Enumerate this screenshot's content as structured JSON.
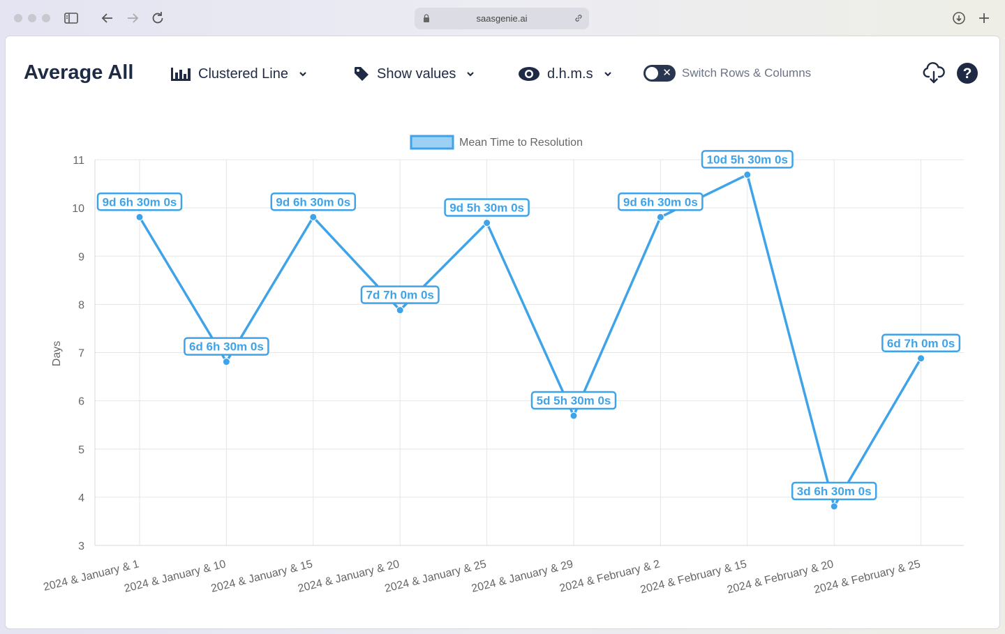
{
  "browser": {
    "url": "saasgenie.ai"
  },
  "toolbar": {
    "title": "Average All",
    "chart_type_label": "Clustered Line",
    "show_values_label": "Show values",
    "format_label": "d.h.m.s",
    "switch_label": "Switch Rows & Columns"
  },
  "colors": {
    "series": "#3ea3e8",
    "series_fill": "#9dd0f5",
    "text_dark": "#1f2a44"
  },
  "chart_data": {
    "type": "line",
    "ylabel": "Days",
    "ylim": [
      3,
      11
    ],
    "yticks": [
      3,
      4,
      5,
      6,
      7,
      8,
      9,
      10,
      11
    ],
    "grid": true,
    "legend_position": "top-center",
    "categories": [
      "2024 & January & 1",
      "2024 & January & 10",
      "2024 & January & 15",
      "2024 & January & 20",
      "2024 & January & 25",
      "2024 & January & 29",
      "2024 & February & 2",
      "2024 & February & 15",
      "2024 & February & 20",
      "2024 & February & 25"
    ],
    "series": [
      {
        "name": "Mean Time to Resolution",
        "values": [
          9.81,
          6.81,
          9.81,
          7.88,
          9.69,
          5.69,
          9.81,
          10.69,
          3.81,
          6.88
        ],
        "labels": [
          "9d 6h 30m 0s",
          "6d 6h 30m 0s",
          "9d 6h 30m 0s",
          "7d 7h 0m 0s",
          "9d 5h 30m 0s",
          "5d 5h 30m 0s",
          "9d 6h 30m 0s",
          "10d 5h 30m 0s",
          "3d 6h 30m 0s",
          "6d 7h 0m 0s"
        ]
      }
    ]
  }
}
